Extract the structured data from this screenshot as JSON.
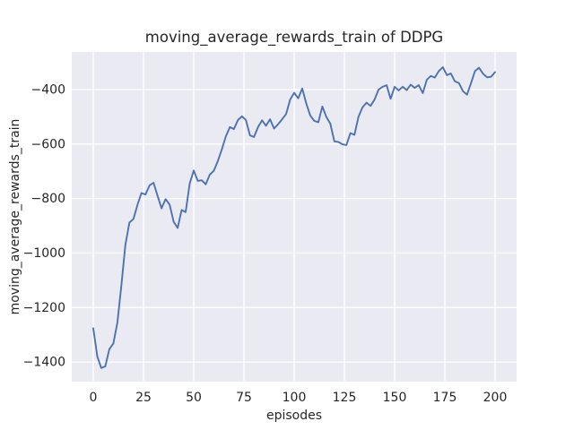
{
  "chart_data": {
    "type": "line",
    "title": "moving_average_rewards_train of DDPG",
    "xlabel": "episodes",
    "ylabel": "moving_average_rewards_train",
    "algorithm": "DDPG",
    "xlim": [
      -10.7,
      210.7
    ],
    "ylim": [
      -1472,
      -262
    ],
    "xticks": [
      0,
      25,
      50,
      75,
      100,
      125,
      150,
      175,
      200
    ],
    "yticks": [
      -400,
      -600,
      -800,
      -1000,
      -1200,
      -1400
    ],
    "xtick_labels": [
      "0",
      "25",
      "50",
      "75",
      "100",
      "125",
      "150",
      "175",
      "200"
    ],
    "ytick_labels": [
      "−400",
      "−600",
      "−800",
      "−1000",
      "−1200",
      "−1400"
    ],
    "grid": true,
    "legend_position": "none",
    "style": {
      "line_color": "#4C72B0",
      "plot_background": "#EAEAF2",
      "grid_color": "#FFFFFF",
      "figure_background": "#FFFFFF",
      "text_color": "#262626"
    },
    "series": [
      {
        "name": "moving_average_rewards_train",
        "x": [
          0,
          2,
          4,
          6,
          8,
          10,
          12,
          14,
          16,
          18,
          20,
          22,
          24,
          26,
          28,
          30,
          32,
          34,
          36,
          38,
          40,
          42,
          44,
          46,
          48,
          50,
          52,
          54,
          56,
          58,
          60,
          62,
          64,
          66,
          68,
          70,
          72,
          74,
          76,
          78,
          80,
          82,
          84,
          86,
          88,
          90,
          92,
          94,
          96,
          98,
          100,
          102,
          104,
          106,
          108,
          110,
          112,
          114,
          116,
          118,
          120,
          122,
          124,
          126,
          128,
          130,
          132,
          134,
          136,
          138,
          140,
          142,
          144,
          146,
          148,
          150,
          152,
          154,
          156,
          158,
          160,
          162,
          164,
          166,
          168,
          170,
          172,
          174,
          176,
          178,
          180,
          182,
          184,
          186,
          188,
          190,
          192,
          194,
          196,
          198,
          200
        ],
        "y": [
          -1276,
          -1380,
          -1422,
          -1416,
          -1353,
          -1332,
          -1255,
          -1120,
          -970,
          -888,
          -875,
          -823,
          -780,
          -785,
          -752,
          -742,
          -790,
          -836,
          -802,
          -822,
          -885,
          -908,
          -842,
          -850,
          -745,
          -697,
          -735,
          -733,
          -748,
          -712,
          -698,
          -662,
          -620,
          -572,
          -538,
          -545,
          -512,
          -498,
          -512,
          -568,
          -574,
          -538,
          -513,
          -533,
          -509,
          -543,
          -527,
          -509,
          -490,
          -437,
          -412,
          -432,
          -396,
          -450,
          -495,
          -515,
          -520,
          -462,
          -500,
          -525,
          -590,
          -592,
          -601,
          -604,
          -560,
          -566,
          -500,
          -465,
          -448,
          -460,
          -437,
          -400,
          -390,
          -384,
          -434,
          -390,
          -403,
          -390,
          -402,
          -382,
          -394,
          -384,
          -413,
          -364,
          -350,
          -356,
          -332,
          -318,
          -347,
          -341,
          -370,
          -376,
          -406,
          -419,
          -377,
          -332,
          -320,
          -342,
          -355,
          -353,
          -336
        ]
      }
    ]
  }
}
